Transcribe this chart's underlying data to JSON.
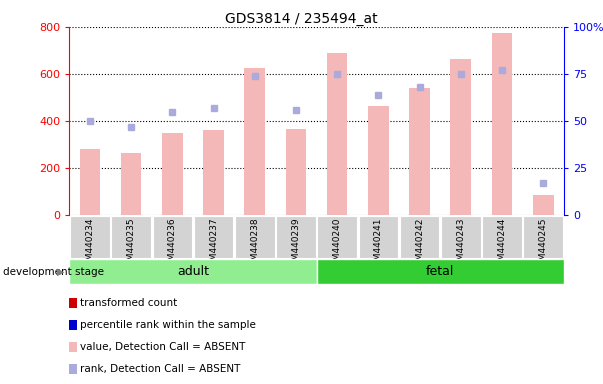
{
  "title": "GDS3814 / 235494_at",
  "samples": [
    "GSM440234",
    "GSM440235",
    "GSM440236",
    "GSM440237",
    "GSM440238",
    "GSM440239",
    "GSM440240",
    "GSM440241",
    "GSM440242",
    "GSM440243",
    "GSM440244",
    "GSM440245"
  ],
  "transformed_count": [
    280,
    265,
    350,
    360,
    625,
    365,
    690,
    465,
    540,
    665,
    775,
    85
  ],
  "percentile_rank": [
    50,
    47,
    55,
    57,
    74,
    56,
    75,
    64,
    68,
    75,
    77,
    17
  ],
  "detection_call": [
    "ABSENT",
    "ABSENT",
    "ABSENT",
    "ABSENT",
    "ABSENT",
    "ABSENT",
    "ABSENT",
    "ABSENT",
    "ABSENT",
    "ABSENT",
    "ABSENT",
    "ABSENT"
  ],
  "stages": [
    "adult",
    "adult",
    "adult",
    "adult",
    "adult",
    "adult",
    "fetal",
    "fetal",
    "fetal",
    "fetal",
    "fetal",
    "fetal"
  ],
  "bar_color_absent": "#f4b8b8",
  "dot_color_absent": "#aaaadd",
  "ylim_left": [
    0,
    800
  ],
  "ylim_right": [
    0,
    100
  ],
  "yticks_left": [
    0,
    200,
    400,
    600,
    800
  ],
  "yticks_right": [
    0,
    25,
    50,
    75,
    100
  ],
  "adult_color": "#90ee90",
  "fetal_color": "#33cc33",
  "stage_label": "development stage",
  "legend_items": [
    {
      "label": "transformed count",
      "color": "#cc0000"
    },
    {
      "label": "percentile rank within the sample",
      "color": "#0000cc"
    },
    {
      "label": "value, Detection Call = ABSENT",
      "color": "#f4b8b8"
    },
    {
      "label": "rank, Detection Call = ABSENT",
      "color": "#aaaadd"
    }
  ],
  "n_adult": 6,
  "n_fetal": 6
}
